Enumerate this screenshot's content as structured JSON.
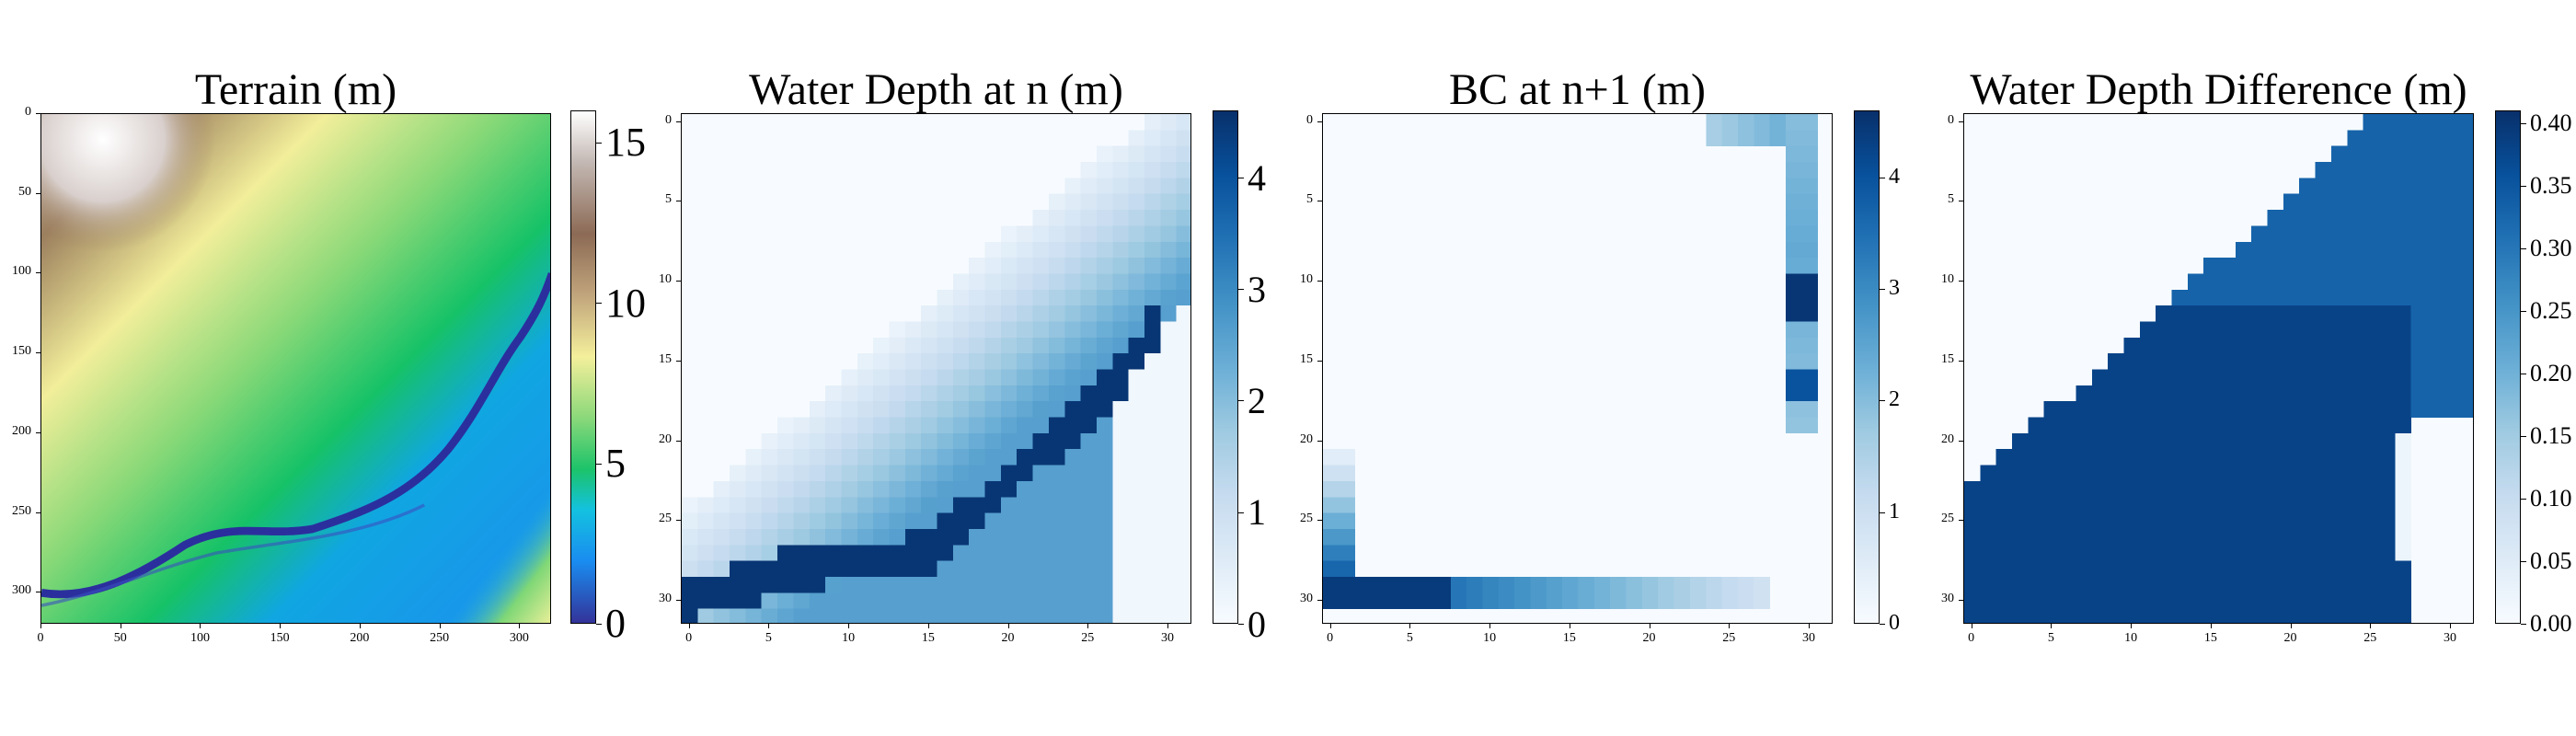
{
  "panels": [
    {
      "title": "Terrain (m)",
      "xticks": [
        "0",
        "50",
        "100",
        "150",
        "200",
        "250",
        "300"
      ],
      "yticks": [
        "0",
        "50",
        "100",
        "150",
        "200",
        "250",
        "300"
      ],
      "colorbar": {
        "ticks": [
          "0",
          "5",
          "10",
          "15"
        ],
        "range": [
          0,
          16
        ],
        "colormap": "terrain"
      }
    },
    {
      "title": "Water Depth at n (m)",
      "xticks": [
        "0",
        "5",
        "10",
        "15",
        "20",
        "25",
        "30"
      ],
      "yticks": [
        "0",
        "5",
        "10",
        "15",
        "20",
        "25",
        "30"
      ],
      "colorbar": {
        "ticks": [
          "0",
          "1",
          "2",
          "3",
          "4"
        ],
        "range": [
          0,
          4.6
        ],
        "colormap": "Blues"
      }
    },
    {
      "title": "BC at n+1 (m)",
      "xticks": [
        "0",
        "5",
        "10",
        "15",
        "20",
        "25",
        "30"
      ],
      "yticks": [
        "0",
        "5",
        "10",
        "15",
        "20",
        "25",
        "30"
      ],
      "colorbar": {
        "ticks": [
          "0",
          "1",
          "2",
          "3",
          "4"
        ],
        "range": [
          0,
          4.6
        ],
        "colormap": "Blues"
      }
    },
    {
      "title": "Water Depth Difference (m)",
      "xticks": [
        "0",
        "5",
        "10",
        "15",
        "20",
        "25",
        "30"
      ],
      "yticks": [
        "0",
        "5",
        "10",
        "15",
        "20",
        "25",
        "30"
      ],
      "colorbar": {
        "ticks": [
          "0.00",
          "0.05",
          "0.10",
          "0.15",
          "0.20",
          "0.25",
          "0.30",
          "0.35",
          "0.40"
        ],
        "range": [
          0,
          0.41
        ],
        "colormap": "Blues"
      }
    }
  ],
  "chart_data": [
    {
      "type": "heatmap",
      "title": "Terrain (m)",
      "xlim": [
        0,
        320
      ],
      "ylim": [
        320,
        0
      ],
      "value_range": [
        0,
        16
      ],
      "colormap": "terrain",
      "description_values": {
        "river_depth": 0.5,
        "peak_top_left": 15,
        "mid_slope": 7,
        "valley_floor": 2.5
      }
    },
    {
      "type": "heatmap",
      "title": "Water Depth at n (m)",
      "xlim": [
        0,
        32
      ],
      "ylim": [
        32,
        0
      ],
      "value_range": [
        0,
        4.6
      ],
      "colormap": "Blues"
    },
    {
      "type": "heatmap",
      "title": "BC at n+1 (m)",
      "xlim": [
        0,
        32
      ],
      "ylim": [
        32,
        0
      ],
      "value_range": [
        0,
        4.6
      ],
      "colormap": "Blues"
    },
    {
      "type": "heatmap",
      "title": "Water Depth Difference (m)",
      "xlim": [
        0,
        32
      ],
      "ylim": [
        32,
        0
      ],
      "value_range": [
        0,
        0.41
      ],
      "colormap": "Blues"
    }
  ]
}
